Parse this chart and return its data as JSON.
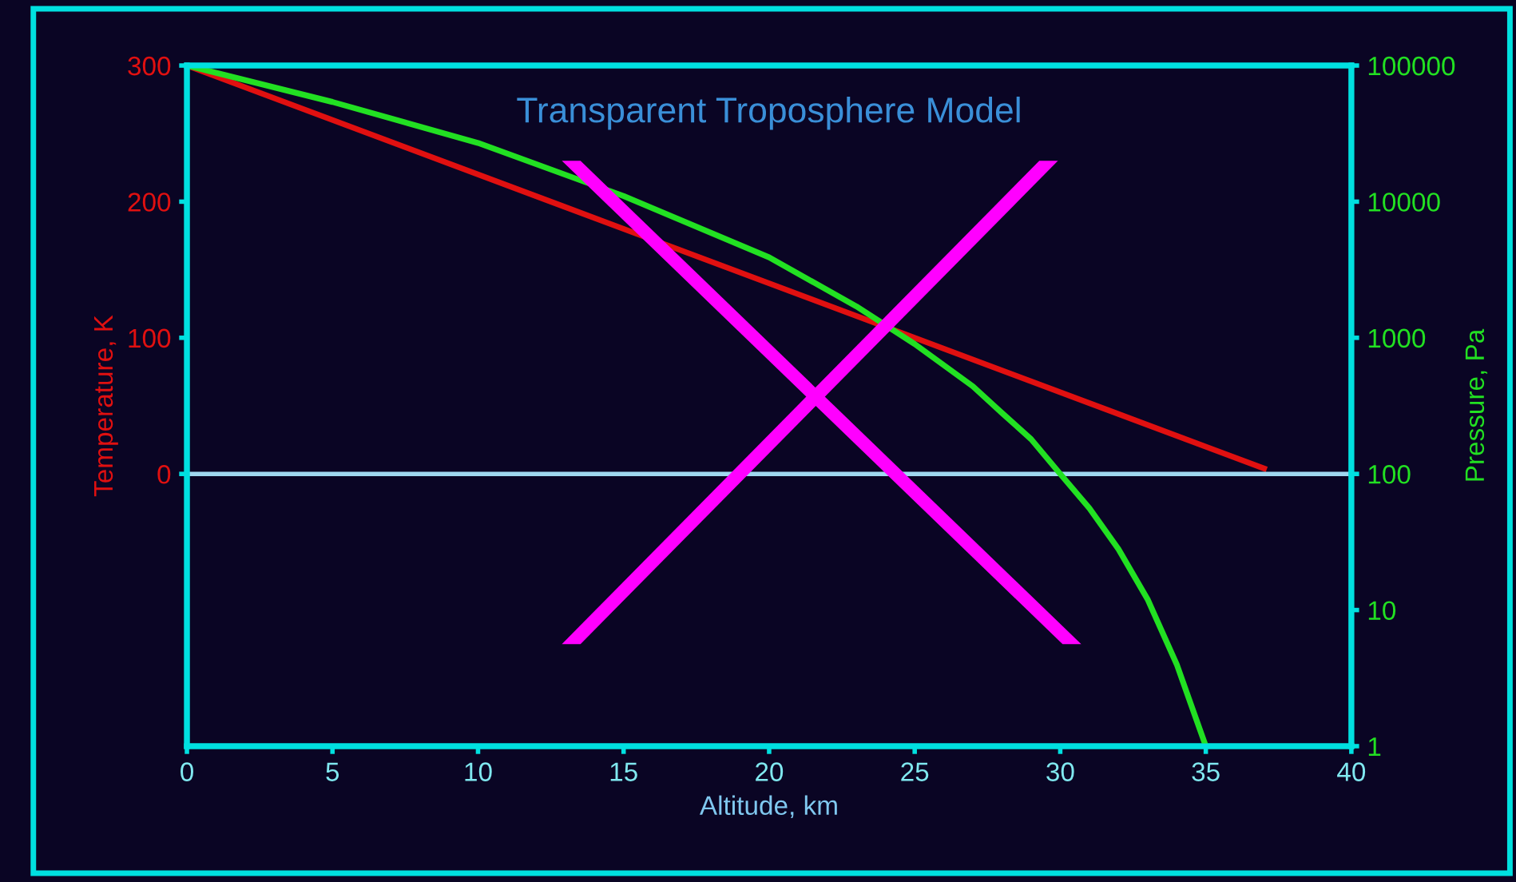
{
  "chart_data": {
    "type": "line",
    "title": "Transparent Troposphere Model",
    "xlabel": "Altitude, km",
    "ylabel": "Temperature, K",
    "y2label": "Pressure, Pa",
    "series": [
      {
        "name": null,
        "color": "#e01010",
        "x": [
          0,
          37
        ],
        "values": [
          300,
          4
        ]
      },
      {
        "name": null,
        "color": "#22e022",
        "axis": "y2",
        "x": [
          0,
          5,
          10,
          15,
          20,
          23,
          25,
          27,
          28,
          29,
          30,
          31,
          32,
          33,
          34,
          34.5,
          35
        ],
        "values": [
          100000,
          54000,
          27000,
          11000,
          3900,
          1700,
          900,
          440,
          280,
          180,
          100,
          56,
          28,
          12,
          4,
          2,
          1
        ]
      }
    ],
    "xlim": [
      0,
      40
    ],
    "xticks": [
      0,
      5,
      10,
      15,
      20,
      25,
      30,
      35,
      40
    ],
    "ylim": [
      -200,
      300
    ],
    "yticks": [
      0,
      100,
      200,
      300
    ],
    "y2lim": [
      1,
      100000
    ],
    "y2ticks": [
      1,
      10,
      100,
      1000,
      10000,
      100000
    ],
    "log": "y2",
    "ref_lines": [
      {
        "axis": "y",
        "value": 0,
        "color": "#a0d8f0"
      }
    ],
    "grid": false,
    "legend": false,
    "marker": "none",
    "line_style": "solid"
  }
}
